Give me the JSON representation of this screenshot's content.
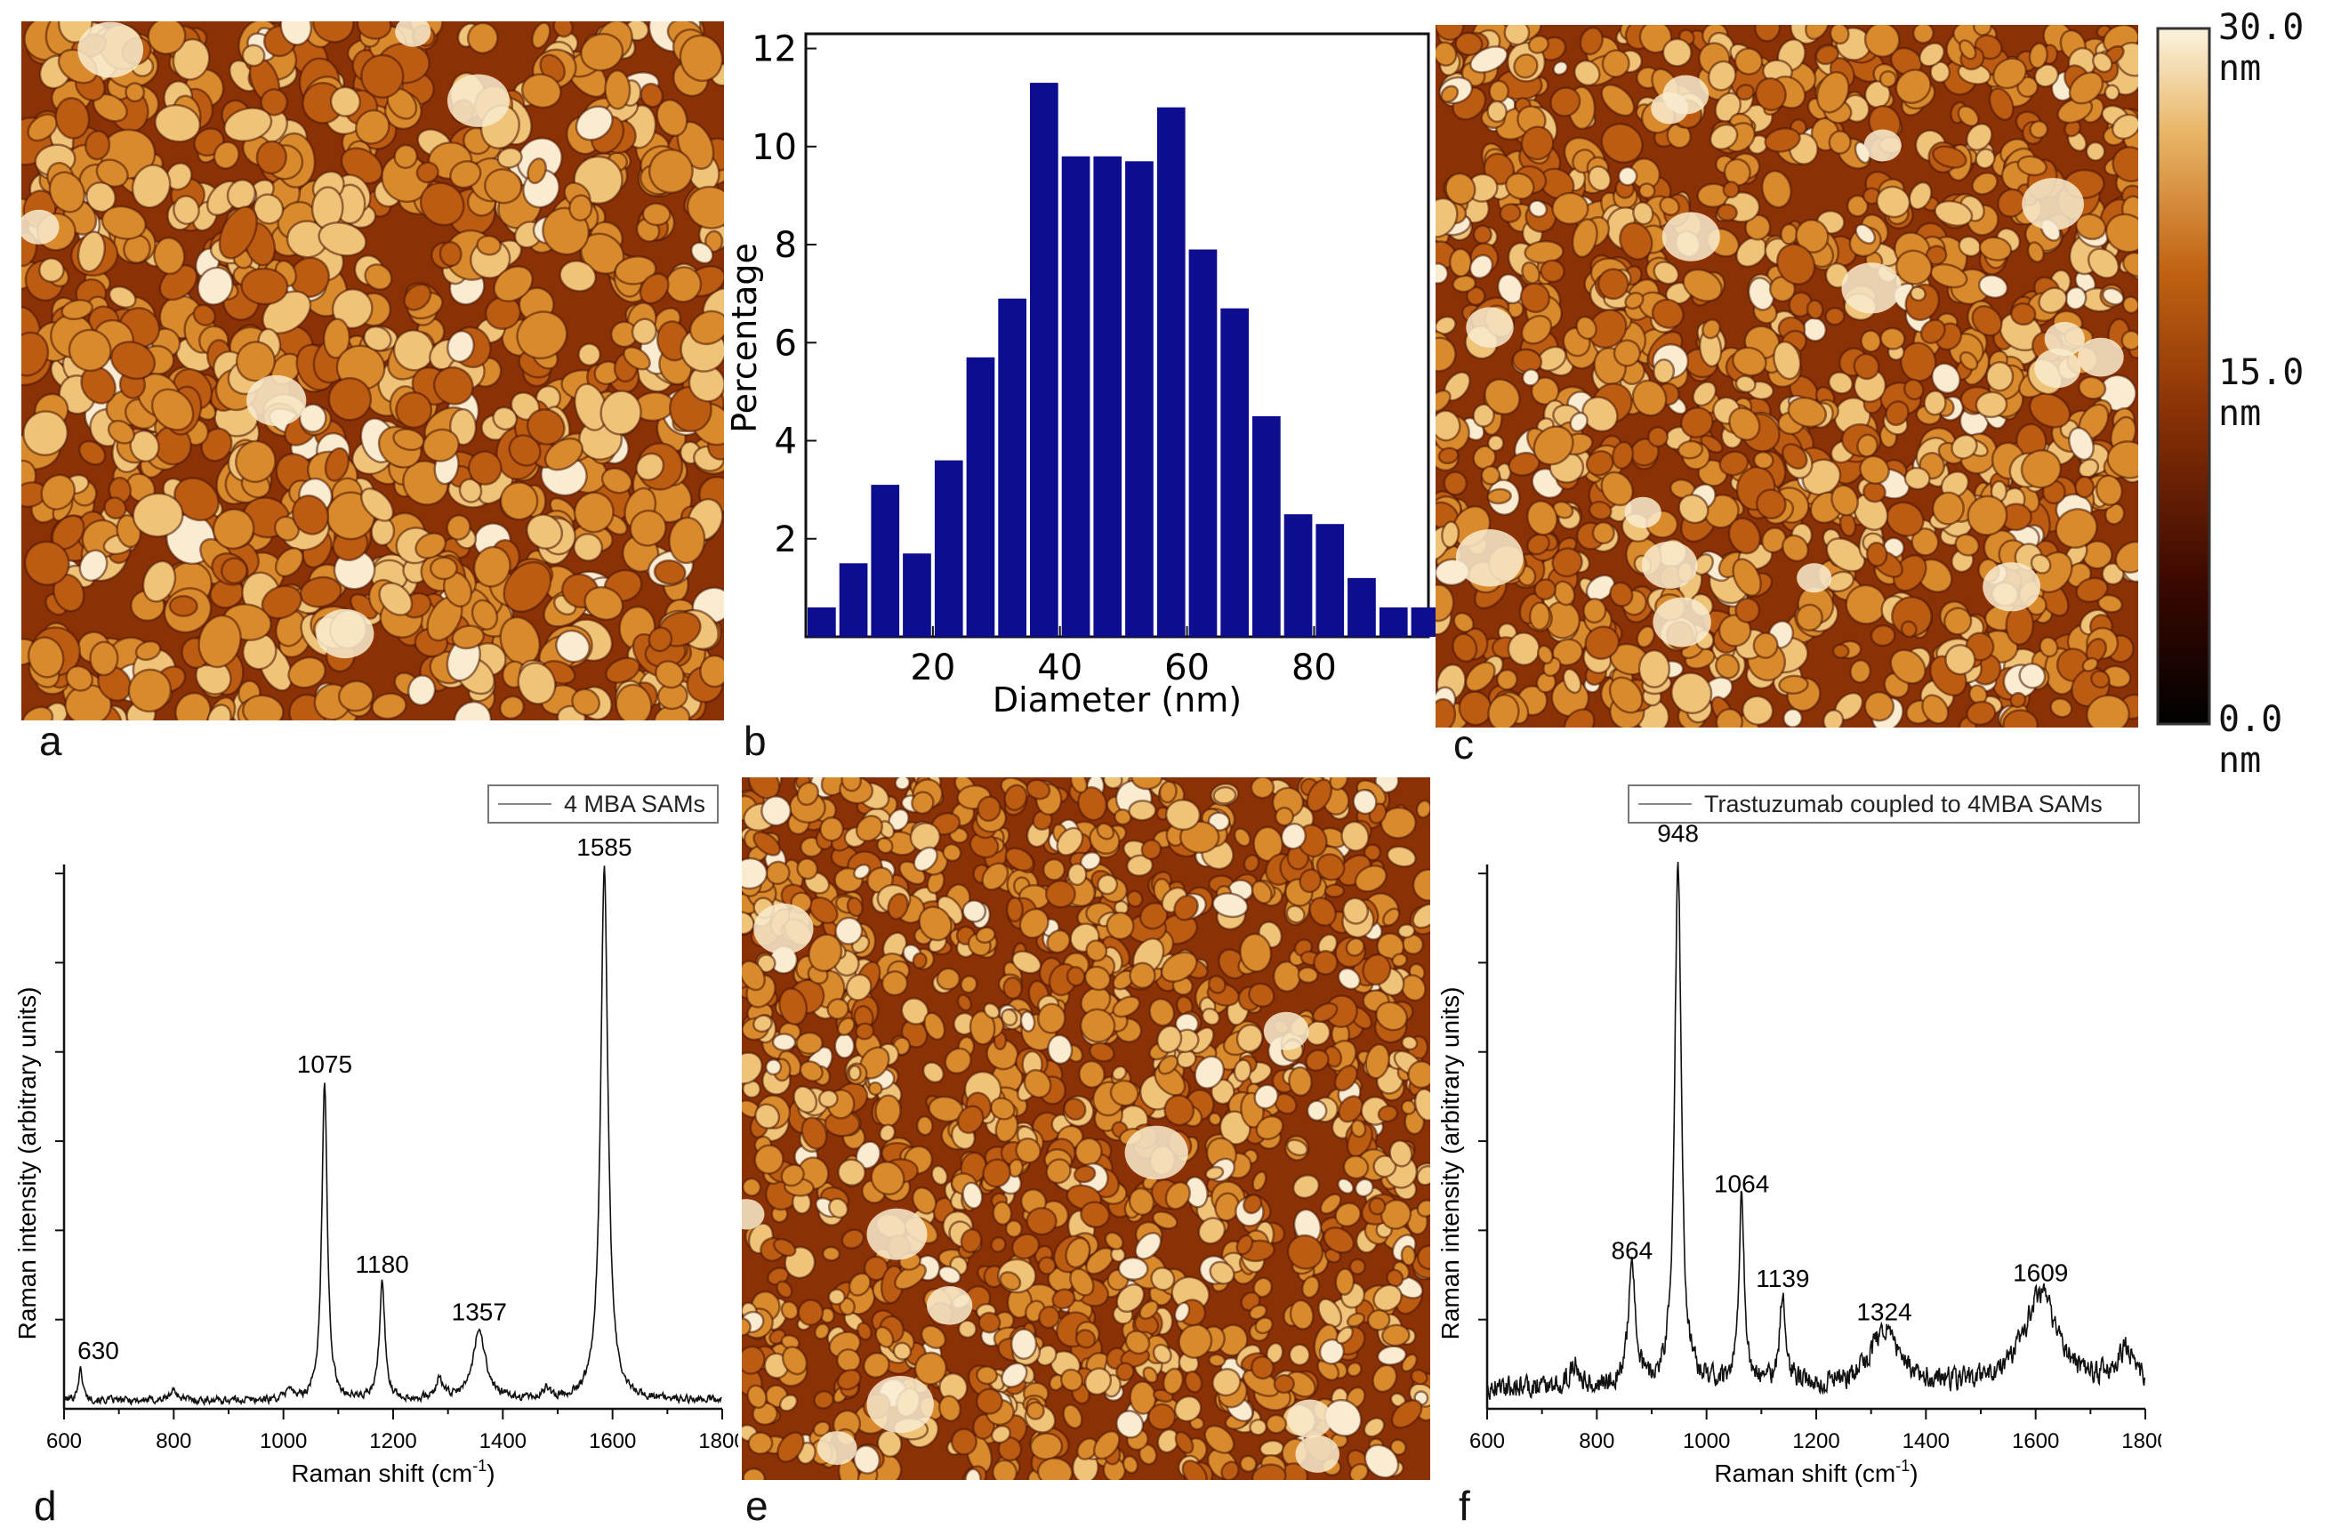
{
  "figure": {
    "panel_labels": [
      "a",
      "b",
      "c",
      "d",
      "e",
      "f"
    ],
    "afm_palette": [
      "#4a1400",
      "#8a3206",
      "#bc5c12",
      "#d98a2c",
      "#efc478",
      "#f9ecd0"
    ]
  },
  "colorbar": {
    "max_label": "30.0 nm",
    "mid_label": "15.0 nm",
    "min_label": "0.0 nm"
  },
  "chart_data": [
    {
      "id": "b",
      "type": "bar",
      "xlabel": "Diameter (nm)",
      "ylabel": "Percentage",
      "bar_color": "#0d0d90",
      "bin_width": 5,
      "x": [
        0,
        5,
        10,
        15,
        20,
        25,
        30,
        35,
        40,
        45,
        50,
        55,
        60,
        65,
        70,
        75,
        80,
        85,
        90,
        95
      ],
      "values": [
        0.6,
        1.5,
        3.1,
        1.7,
        3.6,
        5.7,
        6.9,
        11.3,
        9.8,
        9.8,
        9.7,
        10.8,
        7.9,
        6.7,
        4.5,
        2.5,
        2.3,
        1.2,
        0.6,
        0.6
      ],
      "xlim": [
        0,
        98
      ],
      "ylim": [
        0,
        12.3
      ],
      "xticks": [
        20,
        40,
        60,
        80
      ],
      "yticks": [
        2,
        4,
        6,
        8,
        10,
        12
      ]
    },
    {
      "id": "d",
      "type": "line",
      "legend": "4 MBA SAMs",
      "xlabel": "Raman shift (cm",
      "xlabel_sup": "-1",
      "xlabel_close": ")",
      "ylabel": "Raman intensity (arbitrary units)",
      "xlim": [
        600,
        1800
      ],
      "xticks": [
        600,
        800,
        1000,
        1200,
        1400,
        1600,
        1800
      ],
      "ylim": [
        0,
        1
      ],
      "baseline": 0.015,
      "noise": 0.006,
      "peaks": [
        {
          "label": "630",
          "x": 630,
          "height": 0.055,
          "width": 5
        },
        {
          "label": "",
          "x": 800,
          "height": 0.018,
          "width": 8
        },
        {
          "label": "",
          "x": 1010,
          "height": 0.022,
          "width": 6
        },
        {
          "label": "1075",
          "x": 1075,
          "height": 0.57,
          "width": 6
        },
        {
          "label": "1180",
          "x": 1180,
          "height": 0.21,
          "width": 6
        },
        {
          "label": "",
          "x": 1285,
          "height": 0.035,
          "width": 8
        },
        {
          "label": "1357",
          "x": 1357,
          "height": 0.125,
          "width": 14
        },
        {
          "label": "",
          "x": 1480,
          "height": 0.02,
          "width": 6
        },
        {
          "label": "1585",
          "x": 1585,
          "height": 0.96,
          "width": 8
        }
      ]
    },
    {
      "id": "f",
      "type": "line",
      "legend": "Trastuzumab coupled to 4MBA SAMs",
      "xlabel": "Raman shift (cm",
      "xlabel_sup": "-1",
      "xlabel_close": ")",
      "ylabel": "Raman intensity (arbitrary units)",
      "xlim": [
        600,
        1800
      ],
      "xticks": [
        600,
        800,
        1000,
        1200,
        1400,
        1600,
        1800
      ],
      "ylim": [
        0,
        1
      ],
      "baseline": 0.04,
      "noise": 0.018,
      "peaks": [
        {
          "label": "",
          "x": 760,
          "height": 0.04,
          "width": 10
        },
        {
          "label": "864",
          "x": 864,
          "height": 0.21,
          "width": 8
        },
        {
          "label": "948",
          "x": 948,
          "height": 0.96,
          "width": 7
        },
        {
          "label": "1064",
          "x": 1064,
          "height": 0.33,
          "width": 6
        },
        {
          "label": "1139",
          "x": 1139,
          "height": 0.16,
          "width": 7
        },
        {
          "label": "1324",
          "x": 1324,
          "height": 0.1,
          "width": 30
        },
        {
          "label": "1609",
          "x": 1609,
          "height": 0.17,
          "width": 35
        },
        {
          "label": "",
          "x": 1765,
          "height": 0.06,
          "width": 20
        }
      ]
    }
  ]
}
